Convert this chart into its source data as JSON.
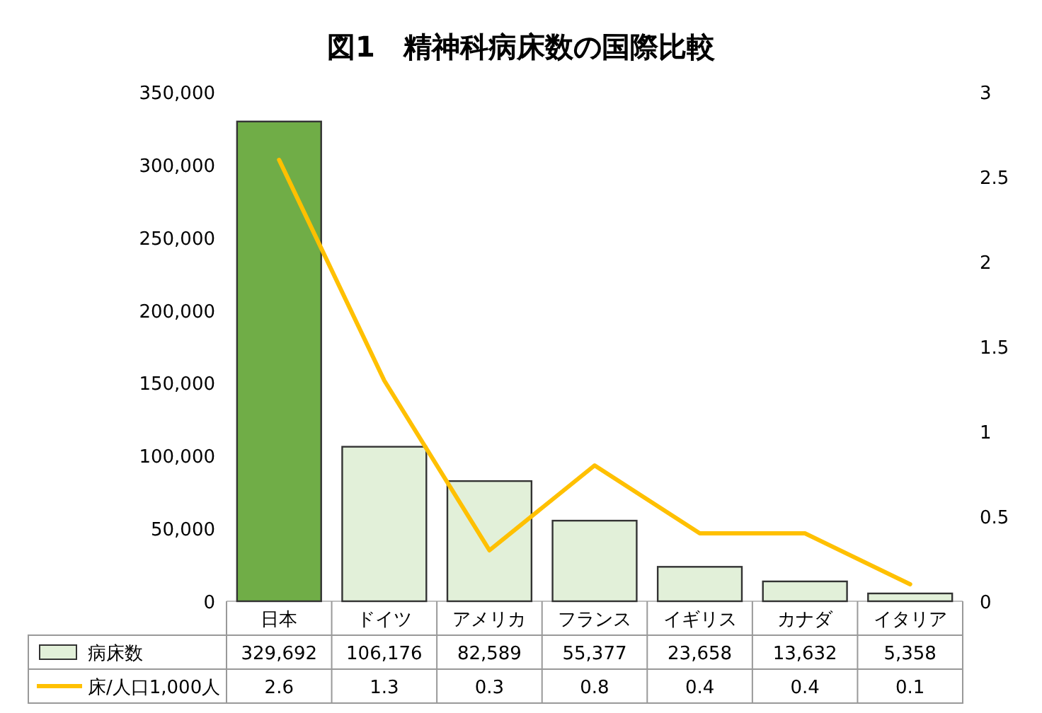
{
  "chart_data": {
    "type": "bar",
    "title": "図1　精神科病床数の国際比較",
    "categories": [
      "日本",
      "ドイツ",
      "アメリカ",
      "フランス",
      "イギリス",
      "カナダ",
      "イタリア"
    ],
    "series": [
      {
        "name": "病床数",
        "color": "#e2f0d9",
        "colors": [
          "#70ad47",
          "#e2f0d9",
          "#e2f0d9",
          "#e2f0d9",
          "#e2f0d9",
          "#e2f0d9",
          "#e2f0d9"
        ],
        "values": [
          329692,
          106176,
          82589,
          55377,
          23658,
          13632,
          5358
        ],
        "value_labels": [
          "329,692",
          "106,176",
          "82,589",
          "55,377",
          "23,658",
          "13,632",
          "5,358"
        ]
      },
      {
        "name": "床/人口1,000人",
        "type": "line",
        "axis": "y2",
        "color": "#ffc000",
        "values": [
          2.6,
          1.3,
          0.3,
          0.8,
          0.4,
          0.4,
          0.1
        ],
        "value_labels": [
          "2.6",
          "1.3",
          "0.3",
          "0.8",
          "0.4",
          "0.4",
          "0.1"
        ]
      }
    ],
    "ylim": [
      0,
      350000
    ],
    "yticks": [
      0,
      {
        "value": 50000,
        "label": "50,000"
      },
      {
        "value": 100000,
        "label": "100,000"
      },
      {
        "value": 150000,
        "label": "150,000"
      },
      {
        "value": 200000,
        "label": "200,000"
      },
      {
        "value": 250000,
        "label": "250,000"
      },
      {
        "value": 300000,
        "label": "300,000"
      },
      {
        "value": 350000,
        "label": "350,000"
      }
    ],
    "y2lim": [
      0,
      3
    ],
    "y2ticks": [
      0,
      0.5,
      1,
      1.5,
      2,
      2.5,
      3
    ],
    "legend": "bottom"
  }
}
